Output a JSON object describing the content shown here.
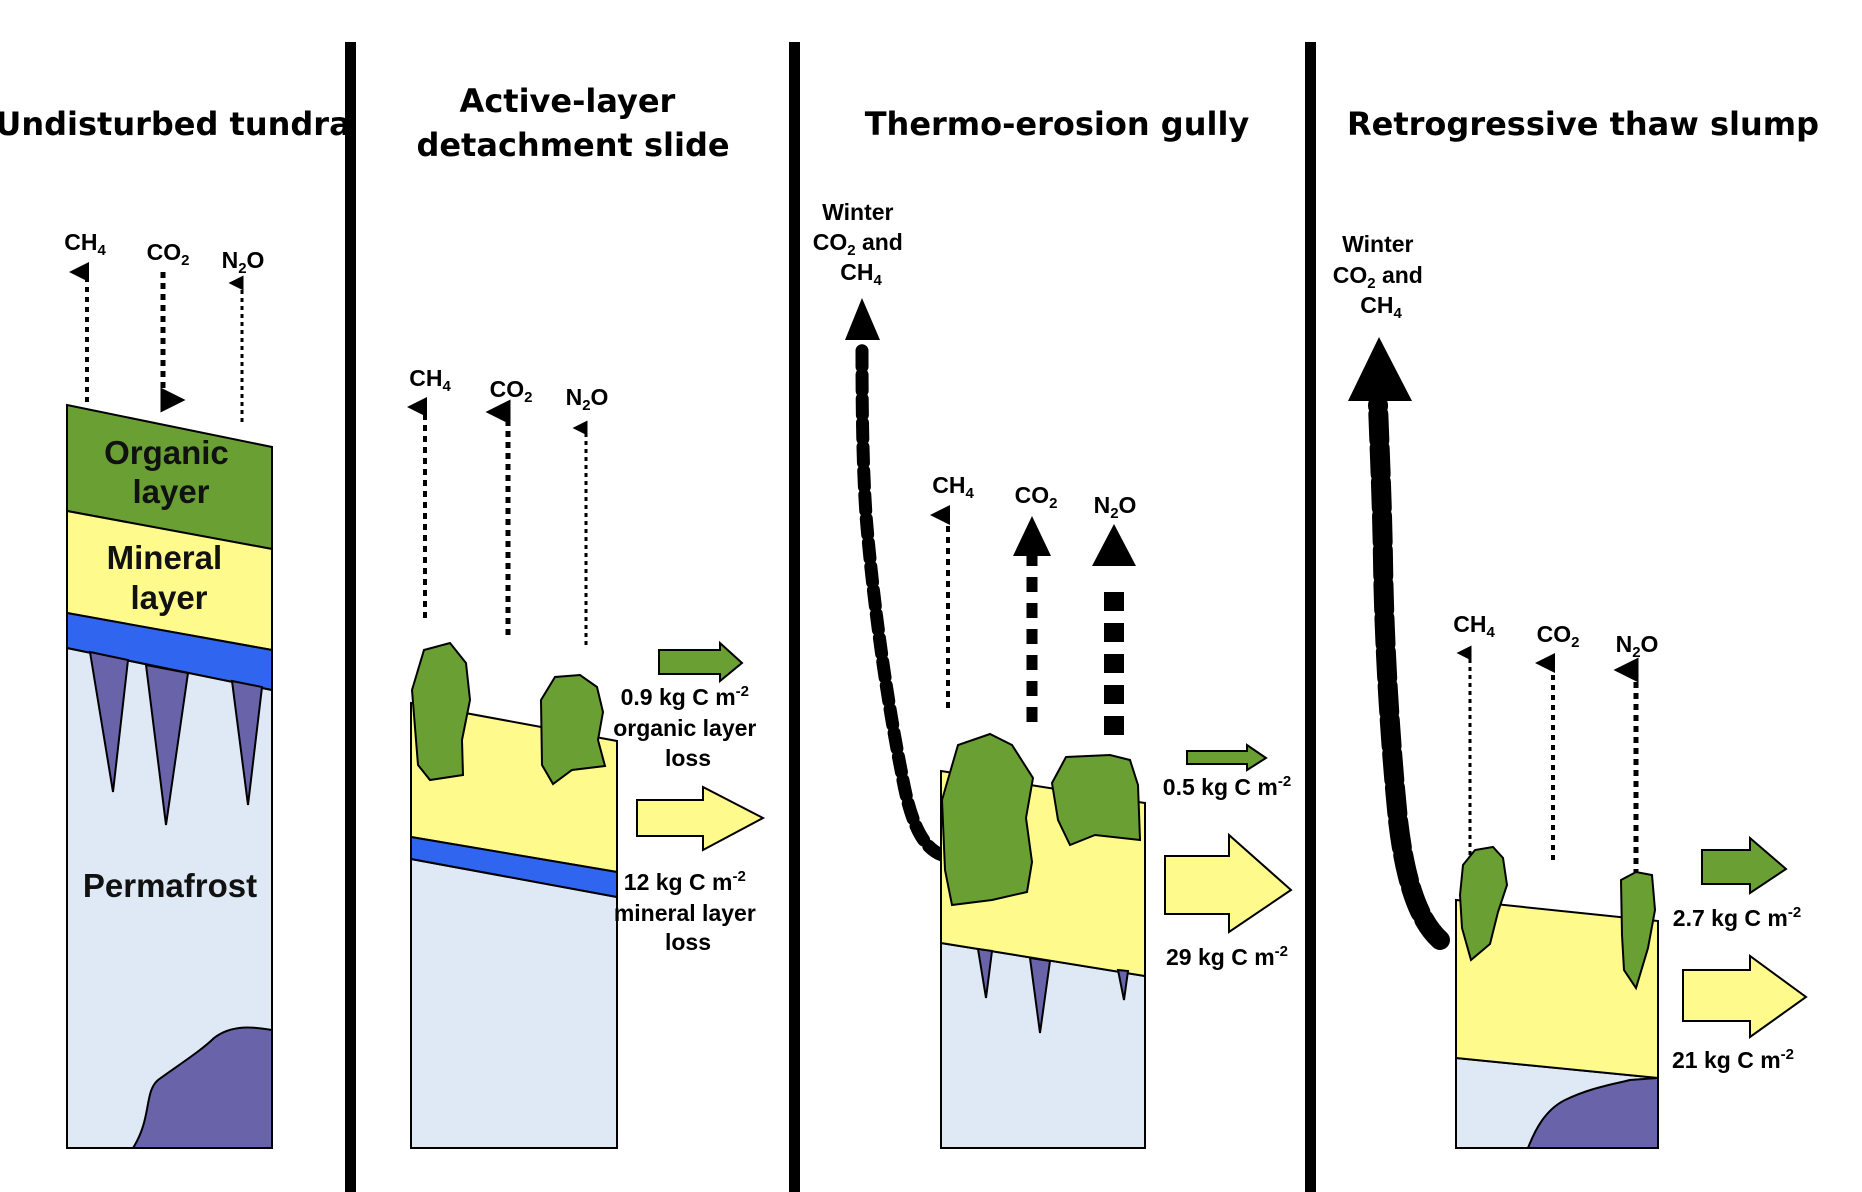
{
  "panels": [
    {
      "title": [
        "Undisturbed tundra"
      ],
      "gases": [
        "CH4",
        "CO2",
        "N2O"
      ],
      "layers": {
        "organic": [
          "Organic",
          "layer"
        ],
        "mineral": [
          "Mineral",
          "layer"
        ],
        "permafrost": "Permafrost"
      }
    },
    {
      "title": [
        "Active-layer",
        "detachment slide"
      ],
      "gases": [
        "CH4",
        "CO2",
        "N2O"
      ],
      "fluxes": [
        [
          "0.9 kg C m-2",
          "organic layer",
          "loss"
        ],
        [
          "12 kg C m-2",
          "mineral layer",
          "loss"
        ]
      ]
    },
    {
      "title": [
        "Thermo-erosion gully"
      ],
      "winter_label": [
        "Winter",
        "CO2 and",
        "CH4"
      ],
      "gases": [
        "CH4",
        "CO2",
        "N2O"
      ],
      "fluxes": [
        [
          "0.5 kg C m-2"
        ],
        [
          "29 kg C m-2"
        ]
      ]
    },
    {
      "title": [
        "Retrogressive thaw slump"
      ],
      "winter_label": [
        "Winter",
        "CO2 and",
        "CH4"
      ],
      "gases": [
        "CH4",
        "CO2",
        "N2O"
      ],
      "fluxes": [
        [
          "2.7 kg C m-2"
        ],
        [
          "21 kg C m-2"
        ]
      ]
    }
  ],
  "colors": {
    "organic": "#6a9f34",
    "mineral": "#fffa8c",
    "ice_layer": "#2f65ef",
    "permafrost": "#dfe9f5",
    "ice_wedge": "#6964aa",
    "divider": "#000000"
  }
}
